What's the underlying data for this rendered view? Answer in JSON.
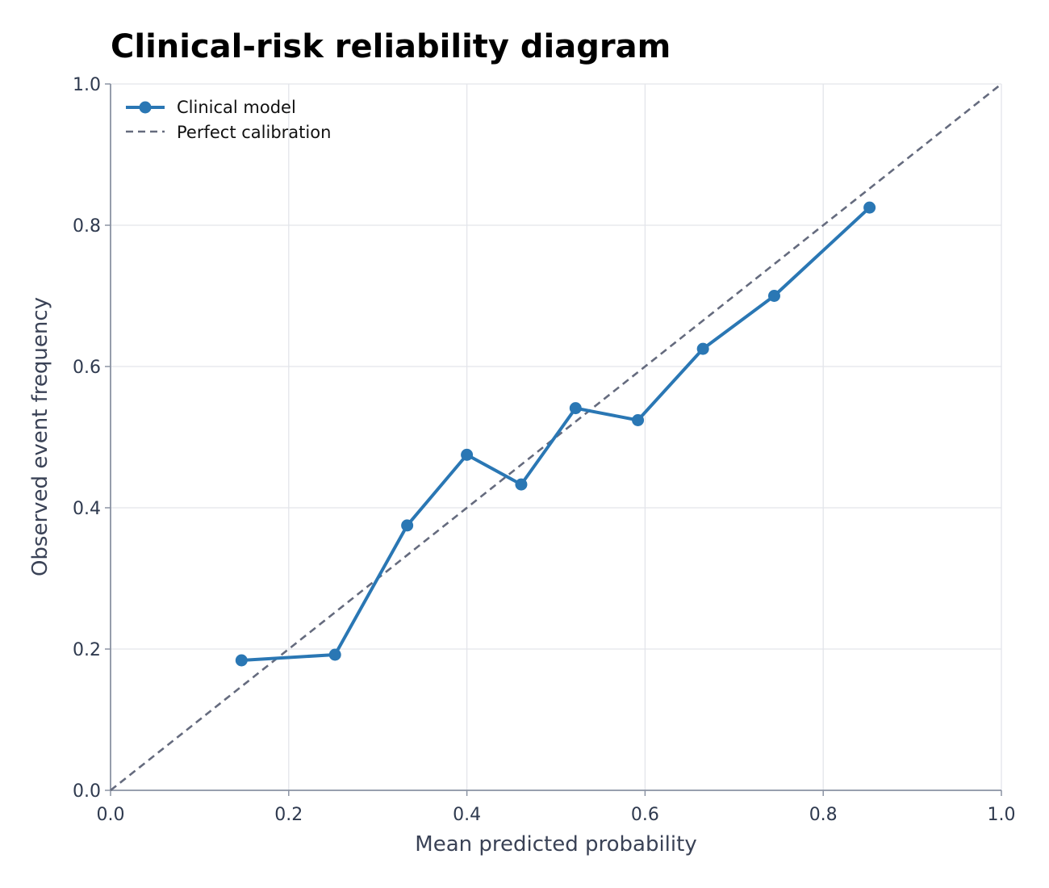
{
  "chart_data": {
    "type": "line",
    "title": "Clinical-risk reliability diagram",
    "xlabel": "Mean predicted probability",
    "ylabel": "Observed event frequency",
    "xlim": [
      0.0,
      1.0
    ],
    "ylim": [
      0.0,
      1.0
    ],
    "x_ticks": [
      "0.0",
      "0.2",
      "0.4",
      "0.6",
      "0.8",
      "1.0"
    ],
    "y_ticks": [
      "0.0",
      "0.2",
      "0.4",
      "0.6",
      "0.8",
      "1.0"
    ],
    "grid": true,
    "legend_position": "top-left",
    "series": [
      {
        "name": "Clinical model",
        "style": "solid line with circle markers",
        "color": "#2a77b4",
        "x": [
          0.147,
          0.252,
          0.333,
          0.4,
          0.461,
          0.522,
          0.592,
          0.665,
          0.745,
          0.852
        ],
        "y": [
          0.184,
          0.192,
          0.375,
          0.475,
          0.433,
          0.541,
          0.524,
          0.625,
          0.7,
          0.825
        ]
      },
      {
        "name": "Perfect calibration",
        "style": "dashed line",
        "color": "#656b7e",
        "x": [
          0.0,
          1.0
        ],
        "y": [
          0.0,
          1.0
        ]
      }
    ]
  }
}
